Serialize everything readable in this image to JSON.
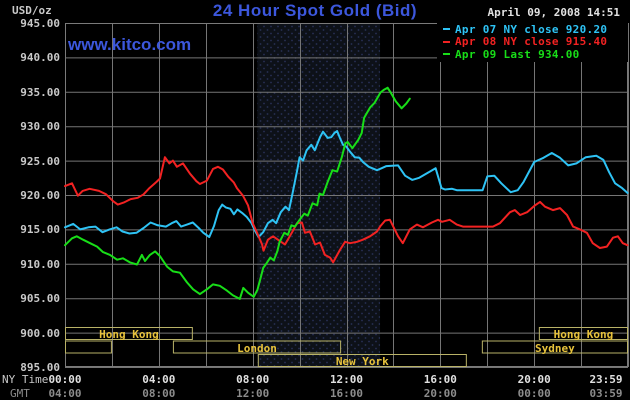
{
  "header": {
    "units_label": "USD/oz",
    "title": "24 Hour Spot Gold (Bid)",
    "datetime": "April 09, 2008 14:51",
    "watermark": "www.kitco.com"
  },
  "legend": {
    "items": [
      {
        "label": "Apr 07 NY close 920.20",
        "color": "#2EC3F5"
      },
      {
        "label": "Apr 08 NY close 915.40",
        "color": "#F22222"
      },
      {
        "label": "Apr 09 Last 934.00",
        "color": "#18DE18"
      }
    ]
  },
  "axes": {
    "ny_time_label": "NY Time",
    "gmt_label": "GMT"
  },
  "colors": {
    "title_blue": "#3C57DC",
    "grid": "#757575",
    "plot_border": "#7A7A7A",
    "band_base": "#0D1118",
    "band_dot": "#283055",
    "session_border": "#B9B267",
    "session_text": "#E8C33C",
    "axis_text": "#C9C9C9",
    "gmt_text": "#8C8C8C"
  },
  "chart_data": {
    "type": "line",
    "title": "24 Hour Spot Gold (Bid)",
    "xlabel": "NY Time",
    "ylabel": "USD/oz",
    "x_axis": {
      "range_hours": [
        0,
        24
      ],
      "tick_hours": [
        0,
        4,
        8,
        12,
        16,
        20,
        23.983
      ],
      "ticks_ny": [
        "00:00",
        "04:00",
        "08:00",
        "12:00",
        "16:00",
        "20:00",
        "23:59"
      ],
      "ticks_gmt": [
        "04:00",
        "08:00",
        "12:00",
        "16:00",
        "20:00",
        "00:00",
        "03:59"
      ],
      "gridline_step_hours": 2
    },
    "y_axis": {
      "min": 895,
      "max": 945,
      "tick_step": 5
    },
    "highlight_band_hours": [
      8.2,
      13.43
    ],
    "sessions": [
      {
        "name": "hong-kong-early",
        "label": "Hong Kong",
        "row": 0,
        "start": 0,
        "end": 5.45
      },
      {
        "name": "hong-kong-late",
        "label": "Hong Kong",
        "row": 0,
        "start": 20.2,
        "end": 24
      },
      {
        "name": "sydney-overnight",
        "label": "",
        "row": 1,
        "start": 0,
        "end": 2.0
      },
      {
        "name": "london",
        "label": "London",
        "row": 1,
        "start": 4.6,
        "end": 11.77
      },
      {
        "name": "sydney",
        "label": "Sydney",
        "row": 1,
        "start": 17.77,
        "end": 24
      },
      {
        "name": "new-york",
        "label": "New York",
        "row": 2,
        "start": 8.22,
        "end": 17.13
      }
    ],
    "series": [
      {
        "name": "Apr 07",
        "legend": "Apr 07 NY close 920.20",
        "close": 920.2,
        "color": "#2EC3F5",
        "points": [
          [
            0,
            915.3
          ],
          [
            0.35,
            915.8
          ],
          [
            0.65,
            915.0
          ],
          [
            1.0,
            915.3
          ],
          [
            1.3,
            915.4
          ],
          [
            1.6,
            914.6
          ],
          [
            1.9,
            915.0
          ],
          [
            2.2,
            915.3
          ],
          [
            2.45,
            914.7
          ],
          [
            2.75,
            914.4
          ],
          [
            3.05,
            914.5
          ],
          [
            3.35,
            915.2
          ],
          [
            3.65,
            916.0
          ],
          [
            3.95,
            915.6
          ],
          [
            4.3,
            915.4
          ],
          [
            4.55,
            915.9
          ],
          [
            4.75,
            916.2
          ],
          [
            4.95,
            915.4
          ],
          [
            5.2,
            915.7
          ],
          [
            5.45,
            916.0
          ],
          [
            5.7,
            915.2
          ],
          [
            5.9,
            914.5
          ],
          [
            6.15,
            913.9
          ],
          [
            6.35,
            915.5
          ],
          [
            6.55,
            917.8
          ],
          [
            6.7,
            918.6
          ],
          [
            6.85,
            918.2
          ],
          [
            7.05,
            918.0
          ],
          [
            7.2,
            917.2
          ],
          [
            7.35,
            917.9
          ],
          [
            7.55,
            917.4
          ],
          [
            7.75,
            916.8
          ],
          [
            7.95,
            915.9
          ],
          [
            8.1,
            914.8
          ],
          [
            8.25,
            913.9
          ],
          [
            8.45,
            914.6
          ],
          [
            8.65,
            915.9
          ],
          [
            8.85,
            916.4
          ],
          [
            9.0,
            915.9
          ],
          [
            9.2,
            917.5
          ],
          [
            9.4,
            918.3
          ],
          [
            9.55,
            917.8
          ],
          [
            9.7,
            920.2
          ],
          [
            9.9,
            923.6
          ],
          [
            10.0,
            925.5
          ],
          [
            10.15,
            925.0
          ],
          [
            10.3,
            926.5
          ],
          [
            10.5,
            927.3
          ],
          [
            10.65,
            926.5
          ],
          [
            10.87,
            928.4
          ],
          [
            11.0,
            929.2
          ],
          [
            11.2,
            928.3
          ],
          [
            11.35,
            928.4
          ],
          [
            11.48,
            929.0
          ],
          [
            11.6,
            929.3
          ],
          [
            11.72,
            928.3
          ],
          [
            11.85,
            927.3
          ],
          [
            12.0,
            927.0
          ],
          [
            12.15,
            926.3
          ],
          [
            12.35,
            925.5
          ],
          [
            12.55,
            925.4
          ],
          [
            12.7,
            924.8
          ],
          [
            12.95,
            924.1
          ],
          [
            13.3,
            923.6
          ],
          [
            13.5,
            923.9
          ],
          [
            13.7,
            924.2
          ],
          [
            14.2,
            924.3
          ],
          [
            14.5,
            922.8
          ],
          [
            14.8,
            922.2
          ],
          [
            15.1,
            922.5
          ],
          [
            15.55,
            923.4
          ],
          [
            15.8,
            923.9
          ],
          [
            16.05,
            921.0
          ],
          [
            16.2,
            920.8
          ],
          [
            16.5,
            920.9
          ],
          [
            16.7,
            920.7
          ],
          [
            17.8,
            920.7
          ],
          [
            18.0,
            922.7
          ],
          [
            18.3,
            922.8
          ],
          [
            18.6,
            921.7
          ],
          [
            19.0,
            920.4
          ],
          [
            19.3,
            920.7
          ],
          [
            19.55,
            921.9
          ],
          [
            20.0,
            924.8
          ],
          [
            20.4,
            925.4
          ],
          [
            20.75,
            926.1
          ],
          [
            21.1,
            925.4
          ],
          [
            21.45,
            924.3
          ],
          [
            21.8,
            924.6
          ],
          [
            22.2,
            925.5
          ],
          [
            22.65,
            925.7
          ],
          [
            22.95,
            925.1
          ],
          [
            23.2,
            923.3
          ],
          [
            23.45,
            921.7
          ],
          [
            23.75,
            921.0
          ],
          [
            23.98,
            920.3
          ]
        ]
      },
      {
        "name": "Apr 08",
        "legend": "Apr 08 NY close 915.40",
        "close": 915.4,
        "color": "#F22222",
        "points": [
          [
            0,
            921.3
          ],
          [
            0.3,
            921.7
          ],
          [
            0.55,
            919.9
          ],
          [
            0.75,
            920.6
          ],
          [
            1.05,
            920.9
          ],
          [
            1.45,
            920.6
          ],
          [
            1.75,
            920.1
          ],
          [
            2.05,
            919.1
          ],
          [
            2.25,
            918.6
          ],
          [
            2.5,
            918.9
          ],
          [
            2.8,
            919.4
          ],
          [
            3.1,
            919.6
          ],
          [
            3.35,
            920.1
          ],
          [
            3.6,
            921.0
          ],
          [
            3.9,
            921.9
          ],
          [
            4.05,
            922.4
          ],
          [
            4.26,
            925.5
          ],
          [
            4.45,
            924.6
          ],
          [
            4.6,
            925.0
          ],
          [
            4.77,
            924.1
          ],
          [
            5.03,
            924.6
          ],
          [
            5.33,
            923.1
          ],
          [
            5.6,
            922.0
          ],
          [
            5.75,
            921.6
          ],
          [
            6.05,
            922.1
          ],
          [
            6.31,
            923.8
          ],
          [
            6.52,
            924.1
          ],
          [
            6.73,
            923.7
          ],
          [
            6.95,
            922.7
          ],
          [
            7.2,
            921.8
          ],
          [
            7.33,
            921.0
          ],
          [
            7.59,
            919.9
          ],
          [
            7.8,
            918.5
          ],
          [
            8.0,
            915.9
          ],
          [
            8.19,
            914.5
          ],
          [
            8.4,
            912.8
          ],
          [
            8.46,
            911.9
          ],
          [
            8.65,
            913.5
          ],
          [
            8.87,
            914.0
          ],
          [
            9.16,
            913.3
          ],
          [
            9.38,
            912.8
          ],
          [
            9.67,
            914.5
          ],
          [
            9.89,
            915.9
          ],
          [
            10.1,
            916.0
          ],
          [
            10.23,
            914.5
          ],
          [
            10.44,
            914.7
          ],
          [
            10.66,
            912.8
          ],
          [
            10.87,
            913.1
          ],
          [
            11.08,
            911.3
          ],
          [
            11.3,
            910.9
          ],
          [
            11.43,
            910.2
          ],
          [
            11.72,
            912.0
          ],
          [
            11.94,
            913.2
          ],
          [
            12.15,
            913.0
          ],
          [
            12.45,
            913.2
          ],
          [
            12.7,
            913.5
          ],
          [
            13.0,
            914.0
          ],
          [
            13.3,
            914.7
          ],
          [
            13.45,
            915.5
          ],
          [
            13.65,
            916.3
          ],
          [
            13.85,
            916.4
          ],
          [
            14.2,
            914.0
          ],
          [
            14.4,
            913.0
          ],
          [
            14.7,
            915.0
          ],
          [
            15.0,
            915.7
          ],
          [
            15.26,
            915.3
          ],
          [
            15.64,
            916.0
          ],
          [
            15.9,
            916.4
          ],
          [
            16.07,
            916.1
          ],
          [
            16.4,
            916.4
          ],
          [
            16.7,
            915.7
          ],
          [
            16.96,
            915.4
          ],
          [
            18.24,
            915.4
          ],
          [
            18.54,
            915.9
          ],
          [
            18.97,
            917.5
          ],
          [
            19.18,
            917.8
          ],
          [
            19.4,
            917.1
          ],
          [
            19.7,
            917.5
          ],
          [
            20.04,
            918.5
          ],
          [
            20.25,
            919.0
          ],
          [
            20.46,
            918.3
          ],
          [
            20.8,
            917.8
          ],
          [
            21.1,
            918.1
          ],
          [
            21.4,
            917.1
          ],
          [
            21.66,
            915.4
          ],
          [
            21.95,
            915.0
          ],
          [
            22.25,
            914.5
          ],
          [
            22.5,
            913.0
          ],
          [
            22.8,
            912.3
          ],
          [
            23.1,
            912.5
          ],
          [
            23.36,
            913.8
          ],
          [
            23.57,
            914.0
          ],
          [
            23.78,
            913.0
          ],
          [
            23.98,
            912.7
          ]
        ]
      },
      {
        "name": "Apr 09",
        "legend": "Apr 09 Last 934.00",
        "last": 934.0,
        "color": "#18DE18",
        "points": [
          [
            0,
            912.7
          ],
          [
            0.3,
            913.7
          ],
          [
            0.5,
            914.0
          ],
          [
            0.77,
            913.5
          ],
          [
            1.07,
            913.0
          ],
          [
            1.37,
            912.5
          ],
          [
            1.62,
            911.7
          ],
          [
            1.92,
            911.3
          ],
          [
            2.22,
            910.6
          ],
          [
            2.47,
            910.8
          ],
          [
            2.77,
            910.2
          ],
          [
            3.07,
            909.9
          ],
          [
            3.28,
            911.3
          ],
          [
            3.41,
            910.4
          ],
          [
            3.62,
            911.3
          ],
          [
            3.84,
            911.8
          ],
          [
            4.05,
            911.1
          ],
          [
            4.35,
            909.6
          ],
          [
            4.6,
            908.9
          ],
          [
            4.9,
            908.7
          ],
          [
            5.2,
            907.3
          ],
          [
            5.46,
            906.3
          ],
          [
            5.75,
            905.6
          ],
          [
            6.05,
            906.3
          ],
          [
            6.31,
            907.0
          ],
          [
            6.6,
            906.8
          ],
          [
            6.9,
            906.1
          ],
          [
            7.16,
            905.4
          ],
          [
            7.45,
            904.9
          ],
          [
            7.6,
            906.5
          ],
          [
            7.8,
            905.8
          ],
          [
            8.05,
            905.2
          ],
          [
            8.2,
            906.2
          ],
          [
            8.35,
            908.1
          ],
          [
            8.45,
            909.4
          ],
          [
            8.6,
            910.1
          ],
          [
            8.75,
            910.9
          ],
          [
            8.9,
            910.5
          ],
          [
            9.05,
            911.8
          ],
          [
            9.15,
            913.2
          ],
          [
            9.35,
            914.5
          ],
          [
            9.5,
            914.2
          ],
          [
            9.65,
            915.6
          ],
          [
            9.8,
            915.4
          ],
          [
            10.0,
            916.4
          ],
          [
            10.2,
            917.3
          ],
          [
            10.35,
            917.0
          ],
          [
            10.55,
            918.8
          ],
          [
            10.75,
            918.5
          ],
          [
            10.85,
            920.2
          ],
          [
            11.0,
            920.0
          ],
          [
            11.2,
            921.9
          ],
          [
            11.4,
            923.6
          ],
          [
            11.6,
            923.4
          ],
          [
            11.8,
            925.5
          ],
          [
            11.95,
            927.5
          ],
          [
            12.05,
            927.7
          ],
          [
            12.25,
            926.8
          ],
          [
            12.35,
            927.3
          ],
          [
            12.5,
            928.0
          ],
          [
            12.65,
            929.0
          ],
          [
            12.75,
            931.2
          ],
          [
            13.0,
            932.7
          ],
          [
            13.2,
            933.4
          ],
          [
            13.45,
            934.9
          ],
          [
            13.6,
            935.3
          ],
          [
            13.75,
            935.6
          ],
          [
            13.9,
            934.8
          ],
          [
            14.1,
            933.6
          ],
          [
            14.35,
            932.6
          ],
          [
            14.55,
            933.3
          ],
          [
            14.7,
            934.0
          ]
        ]
      }
    ]
  }
}
